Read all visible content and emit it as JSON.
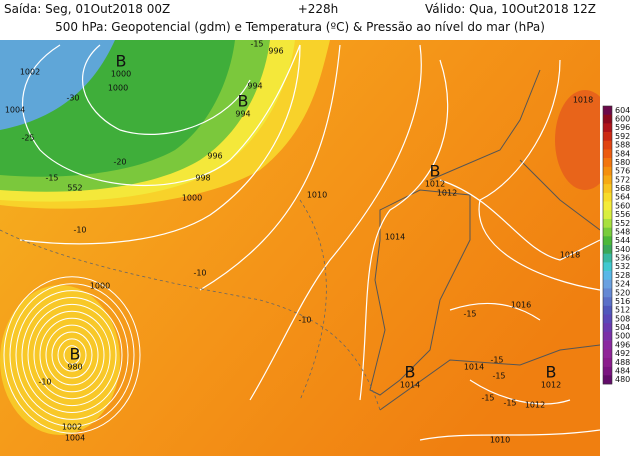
{
  "header": {
    "issued": "Saída: Seg, 01Out2018 00Z",
    "lead": "+228h",
    "valid": "Válido: Qua, 10Out2018 12Z",
    "subtitle": "500 hPa: Geopotencial (gdm) e Temperatura (ºC) & Pressão ao nível do mar (hPa)"
  },
  "lows": [
    {
      "symbol": "B",
      "pressure": 1000
    },
    {
      "symbol": "B",
      "pressure": 994
    },
    {
      "symbol": "B",
      "pressure": 1012
    },
    {
      "symbol": "B",
      "pressure": 980
    },
    {
      "symbol": "B",
      "pressure": 1014
    },
    {
      "symbol": "B",
      "pressure": 1012
    }
  ],
  "contour_labels": [
    1002,
    -15,
    996,
    994,
    1000,
    -30,
    1004,
    -25,
    -20,
    996,
    998,
    -15,
    552,
    1000,
    1010,
    1012,
    1018,
    -10,
    1014,
    -10,
    1000,
    1018,
    -10,
    1016,
    -15,
    -15,
    1014,
    -15,
    -10,
    -15,
    -15,
    1012,
    1002,
    1004,
    1010
  ],
  "colorbar": {
    "ticks": [
      604,
      600,
      596,
      592,
      588,
      584,
      580,
      576,
      572,
      568,
      564,
      560,
      556,
      552,
      548,
      544,
      540,
      536,
      532,
      528,
      524,
      520,
      516,
      512,
      508,
      504,
      500,
      496,
      492,
      488,
      484,
      480
    ]
  }
}
